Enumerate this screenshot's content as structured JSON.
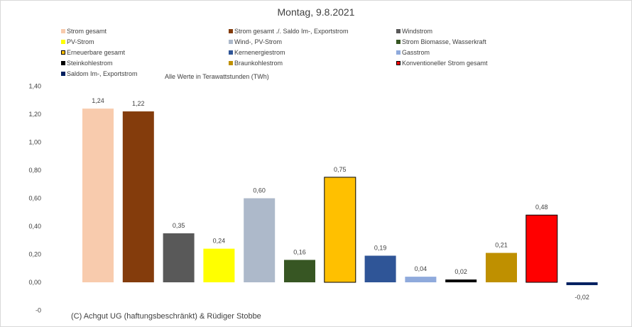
{
  "chart_data": {
    "type": "bar",
    "title": "Montag, 9.8.2021",
    "subtitle": "Alle Werte in Terawattstunden (TWh)",
    "ylim": [
      -0.2,
      1.4
    ],
    "y_ticks": [
      "-0",
      "0,00",
      "0,20",
      "0,40",
      "0,60",
      "0,80",
      "1,00",
      "1,20",
      "1,40"
    ],
    "y_tick_values": [
      -0.2,
      0,
      0.2,
      0.4,
      0.6,
      0.8,
      1.0,
      1.2,
      1.4
    ],
    "grid": false,
    "legend_position": "top",
    "series": [
      {
        "name": "Strom gesamt",
        "value": 1.24,
        "label": "1,24",
        "color": "#f8cbad",
        "outline": false
      },
      {
        "name": "Strom gesamt ./. Saldo Im-, Exportstrom",
        "value": 1.22,
        "label": "1,22",
        "color": "#843c0c",
        "outline": false
      },
      {
        "name": "Windstrom",
        "value": 0.35,
        "label": "0,35",
        "color": "#595959",
        "outline": false
      },
      {
        "name": "PV-Strom",
        "value": 0.24,
        "label": "0,24",
        "color": "#ffff00",
        "outline": false
      },
      {
        "name": "Wind-, PV-Strom",
        "value": 0.6,
        "label": "0,60",
        "color": "#adb9ca",
        "outline": false
      },
      {
        "name": "Strom Biomasse, Wasserkraft",
        "value": 0.16,
        "label": "0,16",
        "color": "#375623",
        "outline": false
      },
      {
        "name": "Erneuerbare gesamt",
        "value": 0.75,
        "label": "0,75",
        "color": "#ffc000",
        "outline": true
      },
      {
        "name": "Kernenergiestrom",
        "value": 0.19,
        "label": "0,19",
        "color": "#2f5597",
        "outline": false
      },
      {
        "name": "Gasstrom",
        "value": 0.04,
        "label": "0,04",
        "color": "#8faadc",
        "outline": false
      },
      {
        "name": "Steinkohlestrom",
        "value": 0.02,
        "label": "0,02",
        "color": "#000000",
        "outline": false
      },
      {
        "name": "Braunkohlestrom",
        "value": 0.21,
        "label": "0,21",
        "color": "#bf9000",
        "outline": false
      },
      {
        "name": "Konventioneller Strom gesamt",
        "value": 0.48,
        "label": "0,48",
        "color": "#ff0000",
        "outline": true
      },
      {
        "name": "Saldom Im-, Exportstrom",
        "value": -0.02,
        "label": "-0,02",
        "color": "#002060",
        "outline": false
      }
    ]
  },
  "credit": "(C) Achgut UG (haftungsbeschränkt) & Rüdiger Stobbe"
}
